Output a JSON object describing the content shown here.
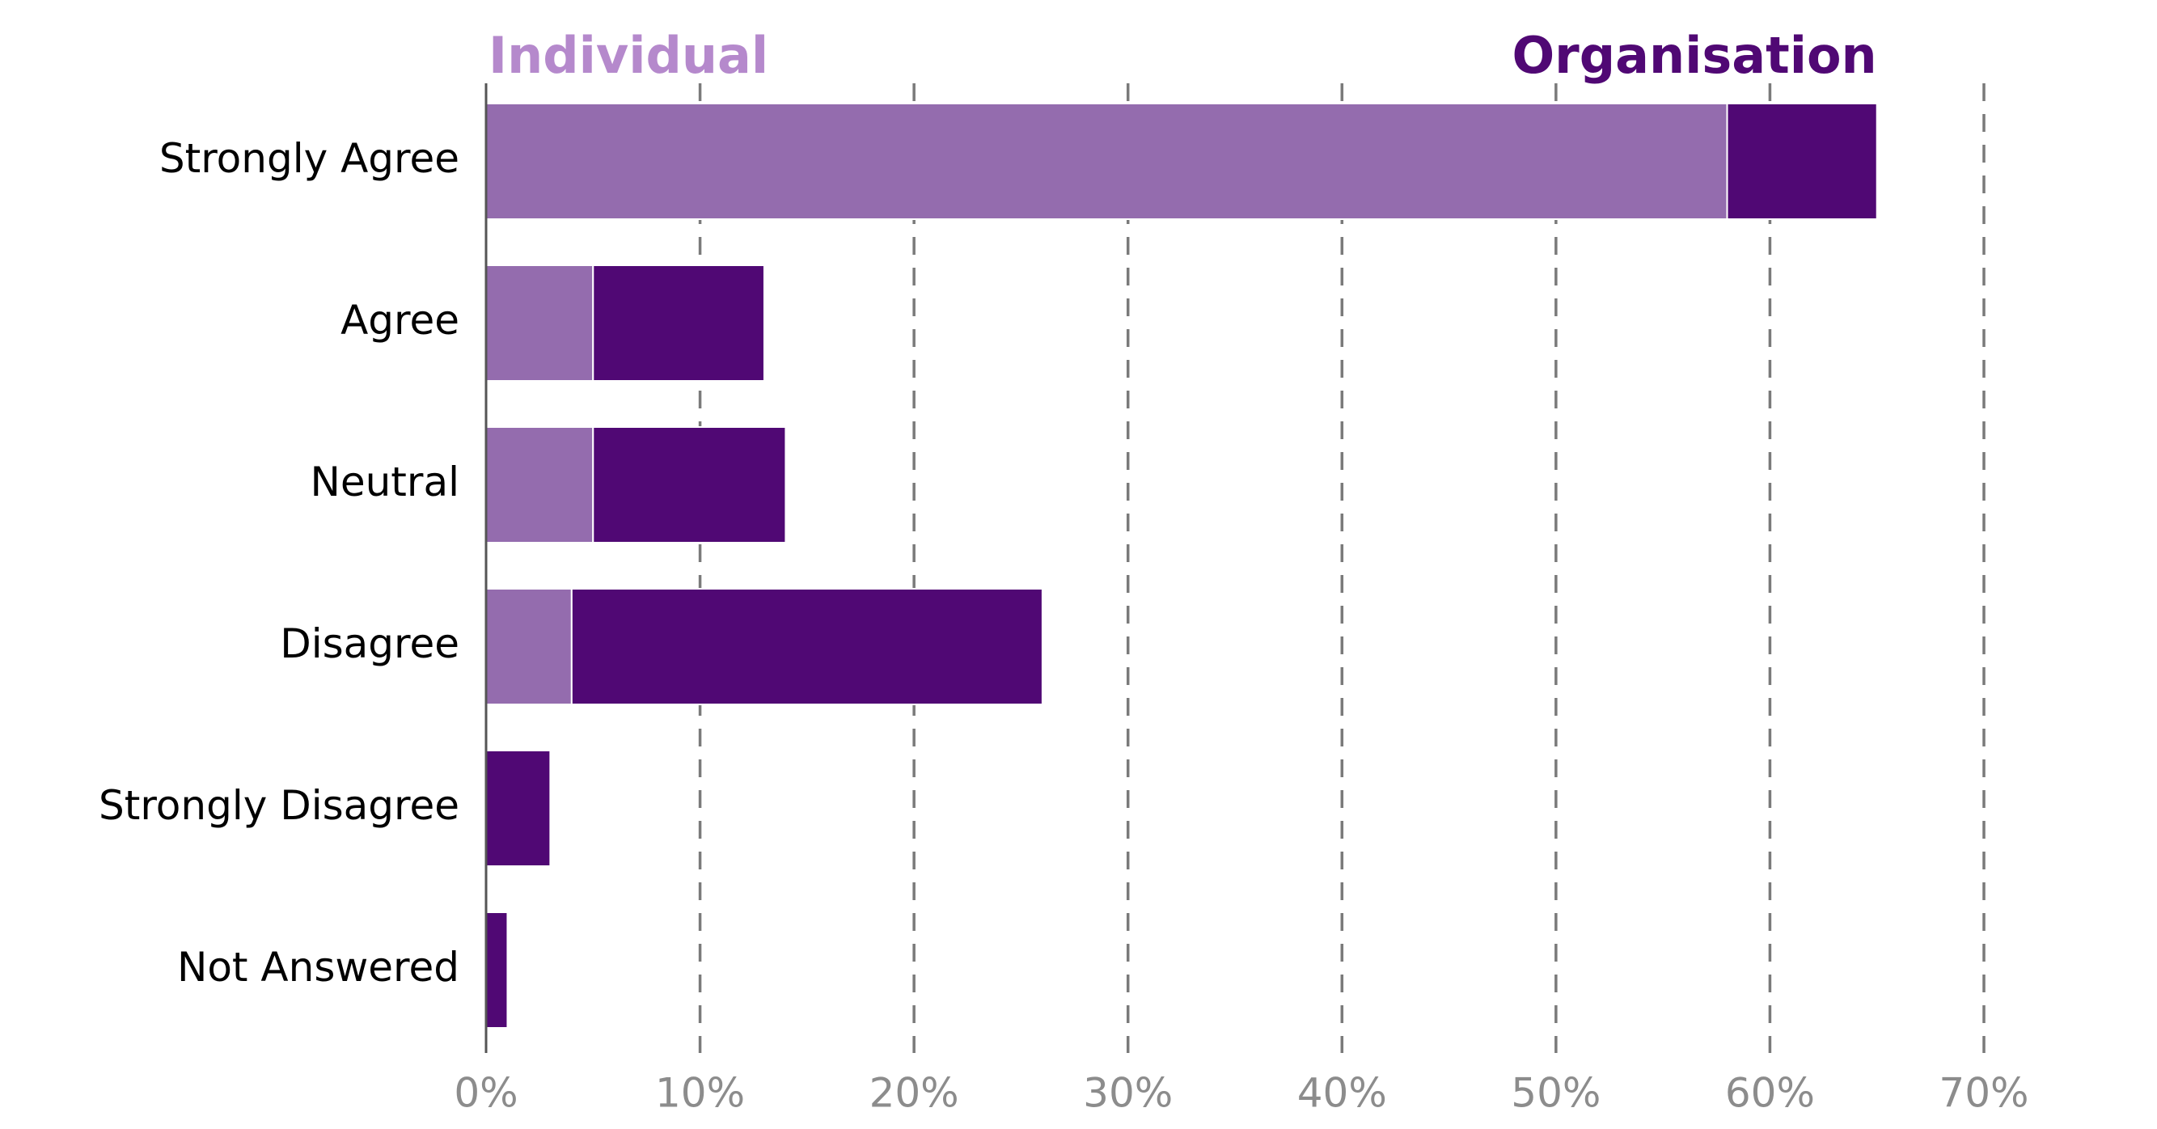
{
  "chart_data": {
    "type": "bar",
    "orientation": "horizontal",
    "stacked": true,
    "categories": [
      "Strongly Agree",
      "Agree",
      "Neutral",
      "Disagree",
      "Strongly Disagree",
      "Not Answered"
    ],
    "series": [
      {
        "name": "Individual",
        "values": [
          58,
          5,
          5,
          4,
          0,
          0
        ]
      },
      {
        "name": "Organisation",
        "values": [
          7,
          8,
          9,
          22,
          3,
          1
        ]
      }
    ],
    "xlim": [
      0,
      70
    ],
    "xticks": [
      0,
      10,
      20,
      30,
      40,
      50,
      60,
      70
    ],
    "xtick_labels": [
      "0%",
      "10%",
      "20%",
      "30%",
      "40%",
      "50%",
      "60%",
      "70%"
    ],
    "grid": "vertical dashed",
    "legend_placement": "top",
    "colors": {
      "individual": "#946cae",
      "organisation": "#500874",
      "individual_label": "#b589cc",
      "grid": "#7a7a7a",
      "tick_text": "#8c8c8c",
      "axis": "#555555"
    }
  }
}
